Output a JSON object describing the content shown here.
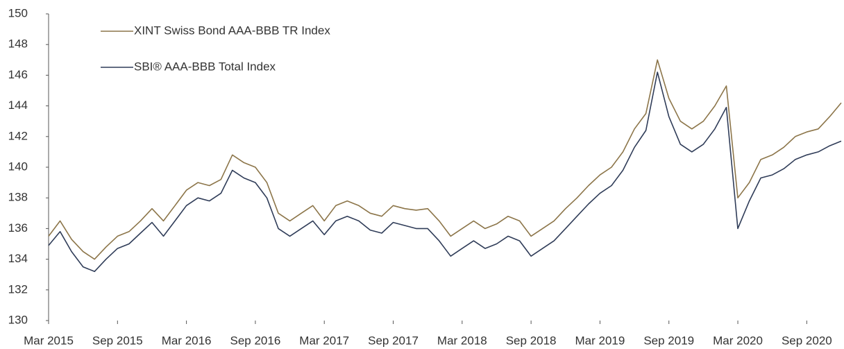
{
  "chart_data": {
    "type": "line",
    "x": [
      "2015-03",
      "2015-04",
      "2015-05",
      "2015-06",
      "2015-07",
      "2015-08",
      "2015-09",
      "2015-10",
      "2015-11",
      "2015-12",
      "2016-01",
      "2016-02",
      "2016-03",
      "2016-04",
      "2016-05",
      "2016-06",
      "2016-07",
      "2016-08",
      "2016-09",
      "2016-10",
      "2016-11",
      "2016-12",
      "2017-01",
      "2017-02",
      "2017-03",
      "2017-04",
      "2017-05",
      "2017-06",
      "2017-07",
      "2017-08",
      "2017-09",
      "2017-10",
      "2017-11",
      "2017-12",
      "2018-01",
      "2018-02",
      "2018-03",
      "2018-04",
      "2018-05",
      "2018-06",
      "2018-07",
      "2018-08",
      "2018-09",
      "2018-10",
      "2018-11",
      "2018-12",
      "2019-01",
      "2019-02",
      "2019-03",
      "2019-04",
      "2019-05",
      "2019-06",
      "2019-07",
      "2019-08",
      "2019-09",
      "2019-10",
      "2019-11",
      "2019-12",
      "2020-01",
      "2020-02",
      "2020-03",
      "2020-04",
      "2020-05",
      "2020-06",
      "2020-07",
      "2020-08",
      "2020-09",
      "2020-10",
      "2020-11",
      "2020-12"
    ],
    "series": [
      {
        "name": "XINT Swiss Bond AAA-BBB TR Index",
        "color": "#8c7549",
        "values": [
          135.5,
          136.5,
          135.3,
          134.5,
          134.0,
          134.8,
          135.5,
          135.8,
          136.5,
          137.3,
          136.5,
          137.5,
          138.5,
          139.0,
          138.8,
          139.2,
          140.8,
          140.3,
          140.0,
          139.0,
          137.0,
          136.5,
          137.0,
          137.5,
          136.5,
          137.5,
          137.8,
          137.5,
          137.0,
          136.8,
          137.5,
          137.3,
          137.2,
          137.3,
          136.5,
          135.5,
          136.0,
          136.5,
          136.0,
          136.3,
          136.8,
          136.5,
          135.5,
          136.0,
          136.5,
          137.3,
          138.0,
          138.8,
          139.5,
          140.0,
          141.0,
          142.5,
          143.5,
          147.0,
          144.5,
          143.0,
          142.5,
          143.0,
          144.0,
          145.3,
          138.0,
          139.0,
          140.5,
          140.8,
          141.3,
          142.0,
          142.3,
          142.5,
          143.3,
          144.2
        ]
      },
      {
        "name": "SBI® AAA-BBB Total Index",
        "color": "#2f3c58",
        "values": [
          134.9,
          135.8,
          134.5,
          133.5,
          133.2,
          134.0,
          134.7,
          135.0,
          135.7,
          136.4,
          135.5,
          136.5,
          137.5,
          138.0,
          137.8,
          138.3,
          139.8,
          139.3,
          139.0,
          138.0,
          136.0,
          135.5,
          136.0,
          136.5,
          135.6,
          136.5,
          136.8,
          136.5,
          135.9,
          135.7,
          136.4,
          136.2,
          136.0,
          136.0,
          135.2,
          134.2,
          134.7,
          135.2,
          134.7,
          135.0,
          135.5,
          135.2,
          134.2,
          134.7,
          135.2,
          136.0,
          136.8,
          137.6,
          138.3,
          138.8,
          139.8,
          141.3,
          142.4,
          146.2,
          143.3,
          141.5,
          141.0,
          141.5,
          142.5,
          143.9,
          136.0,
          137.8,
          139.3,
          139.5,
          139.9,
          140.5,
          140.8,
          141.0,
          141.4,
          141.7
        ]
      }
    ],
    "xticks": [
      {
        "value": "2015-03",
        "label": "Mar 2015"
      },
      {
        "value": "2015-09",
        "label": "Sep 2015"
      },
      {
        "value": "2016-03",
        "label": "Mar 2016"
      },
      {
        "value": "2016-09",
        "label": "Sep 2016"
      },
      {
        "value": "2017-03",
        "label": "Mar 2017"
      },
      {
        "value": "2017-09",
        "label": "Sep 2017"
      },
      {
        "value": "2018-03",
        "label": "Mar 2018"
      },
      {
        "value": "2018-09",
        "label": "Sep 2018"
      },
      {
        "value": "2019-03",
        "label": "Mar 2019"
      },
      {
        "value": "2019-09",
        "label": "Sep 2019"
      },
      {
        "value": "2020-03",
        "label": "Mar 2020"
      },
      {
        "value": "2020-09",
        "label": "Sep 2020"
      }
    ],
    "ylim": [
      130,
      150
    ],
    "yticks": [
      130,
      132,
      134,
      136,
      138,
      140,
      142,
      144,
      146,
      148,
      150
    ]
  }
}
